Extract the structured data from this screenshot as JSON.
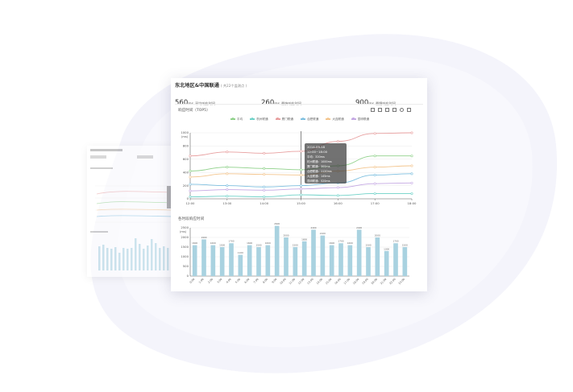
{
  "header": {
    "title": "东北地区&中国联通",
    "subtitle": "( 共22个监测点 )"
  },
  "stats": [
    {
      "value": "560",
      "unit": "ms",
      "label": "平均响应时间"
    },
    {
      "value": "260",
      "unit": "ms",
      "label": "最快响应时间"
    },
    {
      "value": "900",
      "unit": "ms",
      "label": "最慢响应时间"
    }
  ],
  "top_chart_title": "响应时间（TOP5）",
  "bottom_chart_title": "各时段响应时间",
  "toolbar_icons": [
    "bar-chart-icon",
    "line-chart-icon",
    "restore-icon",
    "data-view-icon",
    "share-icon",
    "save-icon"
  ],
  "tooltip": {
    "header": "2014-09-18 12:00~18:00",
    "rows": [
      "平均：320ms",
      "杭州联通：1000ms",
      "厦门联通：300ms",
      "合肥联通：1120ms",
      "大连联通：145ms",
      "昆明联通：520ms"
    ]
  },
  "chart_data": [
    {
      "type": "line",
      "title": "响应时间（TOP5）",
      "ylabel": "(ms)",
      "x": [
        "12:00",
        "13:00",
        "14:00",
        "15:00",
        "16:00",
        "17:00",
        "18:00"
      ],
      "ylim": [
        0,
        1000
      ],
      "yticks": [
        0,
        200,
        400,
        600,
        800,
        1000
      ],
      "series": [
        {
          "name": "平均",
          "color": "#8fd18a",
          "values": [
            420,
            480,
            460,
            440,
            500,
            650,
            650
          ]
        },
        {
          "name": "杭州联通",
          "color": "#6fd2c8",
          "values": [
            30,
            40,
            30,
            60,
            50,
            80,
            80
          ]
        },
        {
          "name": "厦门联通",
          "color": "#e8a0a0",
          "values": [
            650,
            710,
            690,
            720,
            870,
            990,
            1000
          ]
        },
        {
          "name": "合肥联通",
          "color": "#7fc0e0",
          "values": [
            220,
            200,
            180,
            200,
            240,
            360,
            380
          ]
        },
        {
          "name": "大连联通",
          "color": "#f3c58e",
          "values": [
            330,
            380,
            370,
            360,
            420,
            480,
            500
          ]
        },
        {
          "name": "昆明联通",
          "color": "#c5a9e3",
          "values": [
            120,
            140,
            130,
            150,
            170,
            230,
            240
          ]
        }
      ],
      "tooltip_x": "15:00",
      "legend": "top-center",
      "grid": true
    },
    {
      "type": "bar",
      "title": "各时段响应时间",
      "ylabel": "(ms)",
      "ylim": [
        0,
        2500
      ],
      "yticks": [
        0,
        500,
        1000,
        1500,
        2000,
        2500
      ],
      "categories": [
        "0:00",
        "1:00",
        "2:00",
        "3:00",
        "4:00",
        "5:00",
        "6:00",
        "7:00",
        "8:00",
        "9:00",
        "10:00",
        "11:00",
        "12:00",
        "13:00",
        "14:00",
        "15:00",
        "16:00",
        "17:00",
        "18:00",
        "19:00",
        "20:00",
        "21:00",
        "22:00",
        "23:00"
      ],
      "values": [
        1600,
        1900,
        1600,
        1500,
        1700,
        1100,
        1600,
        1500,
        1600,
        2600,
        2000,
        1500,
        1800,
        2400,
        2100,
        1600,
        1700,
        1600,
        2400,
        1500,
        2000,
        1300,
        1700,
        1500
      ],
      "color": "#a9d2e0",
      "grid": true
    }
  ]
}
